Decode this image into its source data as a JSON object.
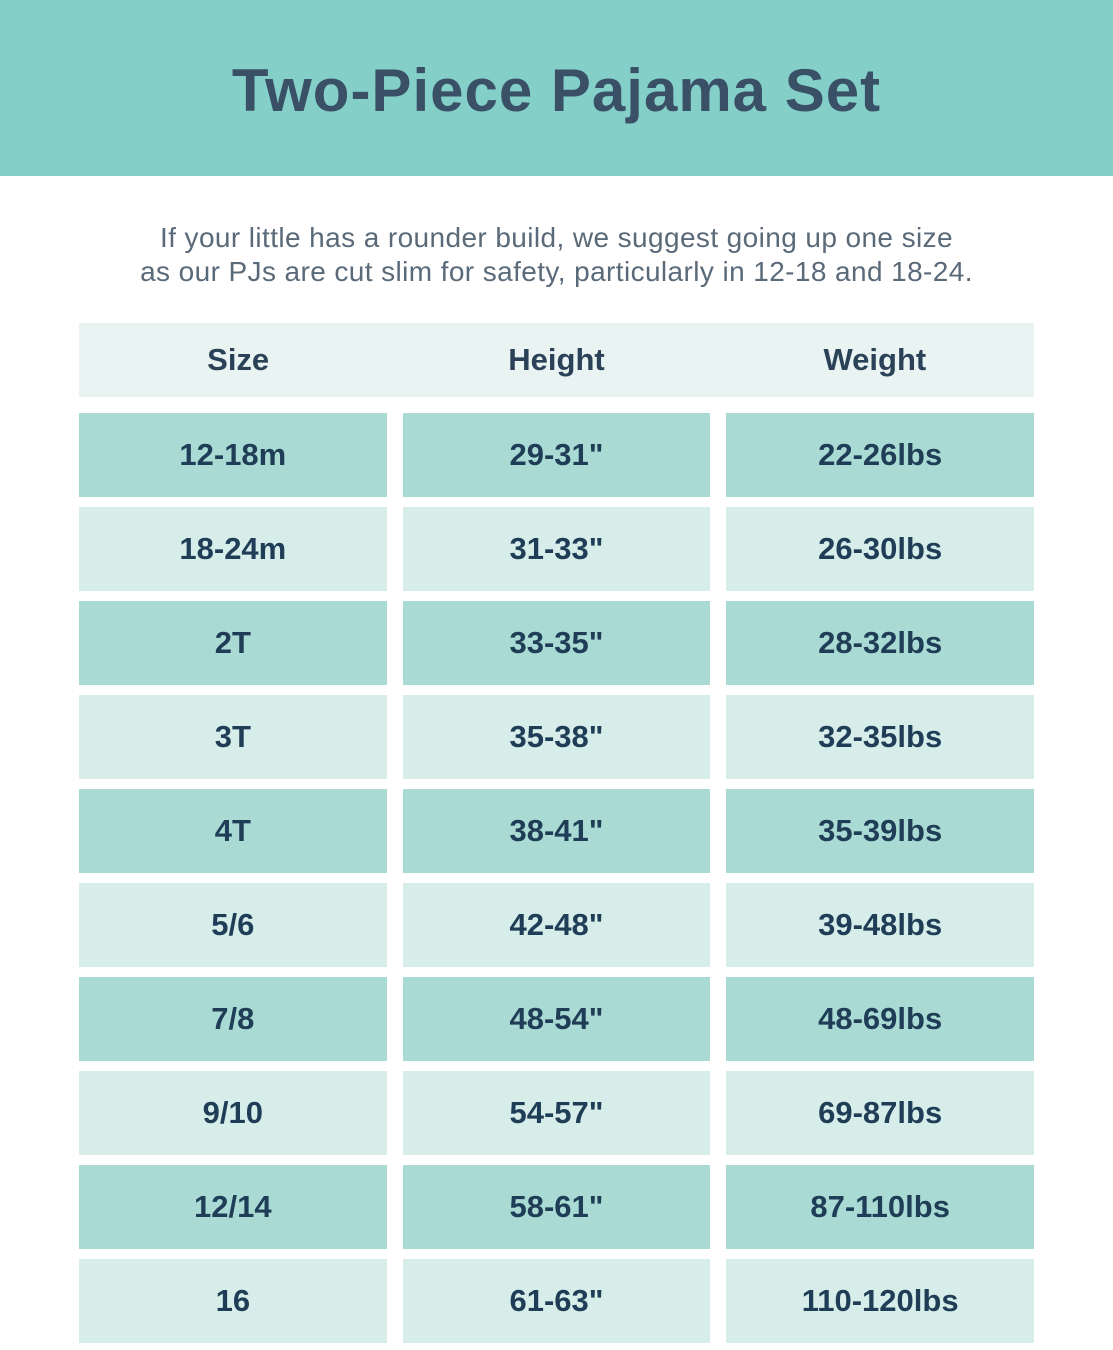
{
  "banner": {
    "title": "Two-Piece Pajama Set"
  },
  "note": {
    "line1": "If your little has a rounder build, we suggest going up one size",
    "line2": "as our PJs are cut slim for safety, particularly in 12-18 and 18-24."
  },
  "table": {
    "columns": [
      "Size",
      "Height",
      "Weight"
    ],
    "rows": [
      [
        "12-18m",
        "29-31\"",
        "22-26lbs"
      ],
      [
        "18-24m",
        "31-33\"",
        "26-30lbs"
      ],
      [
        "2T",
        "33-35\"",
        "28-32lbs"
      ],
      [
        "3T",
        "35-38\"",
        "32-35lbs"
      ],
      [
        "4T",
        "38-41\"",
        "35-39lbs"
      ],
      [
        "5/6",
        "42-48\"",
        "39-48lbs"
      ],
      [
        "7/8",
        "48-54\"",
        "48-69lbs"
      ],
      [
        "9/10",
        "54-57\"",
        "69-87lbs"
      ],
      [
        "12/14",
        "58-61\"",
        "87-110lbs"
      ],
      [
        "16",
        "61-63\"",
        "110-120lbs"
      ]
    ]
  },
  "colors": {
    "banner_bg": "#84D0C9",
    "title_text": "#3A5066",
    "note_text": "#5A6A79",
    "header_row_bg": "#E9F4F2",
    "header_text": "#2B4158",
    "row_dark_bg": "#A9DBD4",
    "row_light_bg": "#D6EDE9",
    "cell_text": "#1F3D56"
  }
}
